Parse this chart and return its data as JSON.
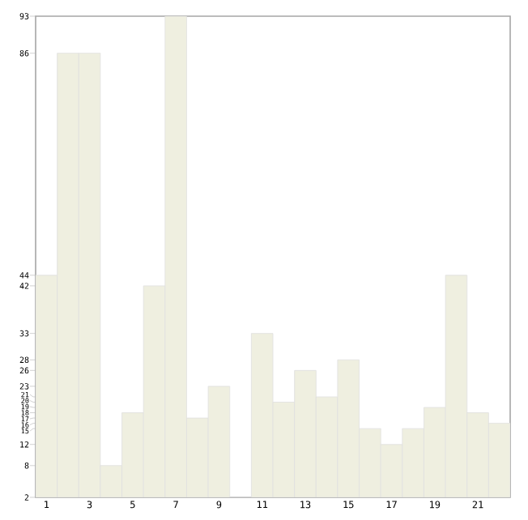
{
  "chart_data": {
    "type": "bar",
    "categories": [
      "1",
      null,
      "3",
      null,
      "5",
      null,
      "7",
      null,
      "9",
      null,
      "11",
      null,
      "13",
      null,
      "15",
      null,
      "17",
      null,
      "19",
      null,
      "21",
      null
    ],
    "values": [
      44,
      86,
      86,
      8,
      18,
      42,
      93,
      17,
      23,
      2,
      33,
      20,
      26,
      21,
      28,
      15,
      12,
      15,
      19,
      44,
      18,
      16
    ],
    "color": "#efefe0",
    "ylim": [
      2,
      93
    ],
    "yticks": [
      2,
      8,
      12,
      15,
      16,
      17,
      18,
      19,
      20,
      21,
      23,
      26,
      28,
      33,
      42,
      44,
      86,
      93
    ],
    "grid": false
  }
}
